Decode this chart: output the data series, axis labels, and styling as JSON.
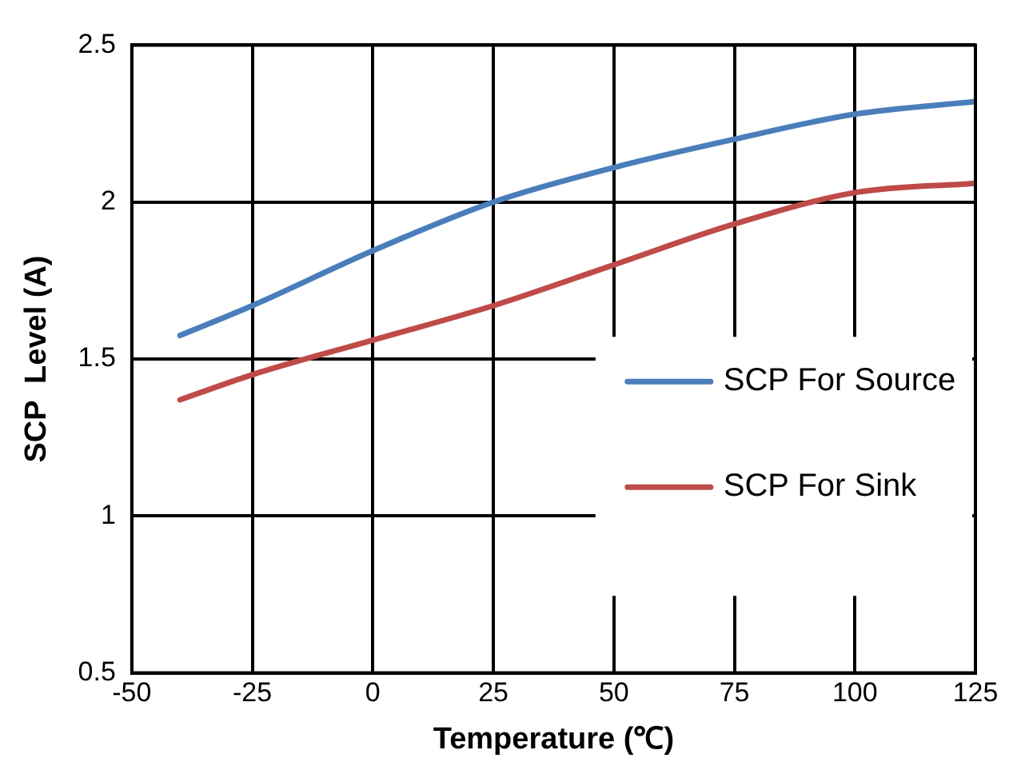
{
  "chart_data": {
    "type": "line",
    "xlabel": "Temperature (℃)",
    "ylabel": "SCP  Level (A)",
    "x": [
      -40,
      -25,
      0,
      25,
      50,
      75,
      100,
      125
    ],
    "series": [
      {
        "name": "SCP For Source",
        "color": "#4a7ebb",
        "values": [
          1.575,
          1.67,
          1.845,
          2.0,
          2.11,
          2.2,
          2.28,
          2.32
        ]
      },
      {
        "name": "SCP For Sink",
        "color": "#be4b48",
        "values": [
          1.37,
          1.45,
          1.56,
          1.67,
          1.8,
          1.93,
          2.03,
          2.06
        ]
      }
    ],
    "xlim": [
      -50,
      125
    ],
    "xticks": [
      -50,
      -25,
      0,
      25,
      50,
      75,
      100,
      125
    ],
    "ylim": [
      0.5,
      2.5
    ],
    "yticks": [
      0.5,
      1,
      1.5,
      2,
      2.5
    ],
    "grid": true,
    "legend": "right",
    "marker": "none",
    "line_style": "solid"
  }
}
